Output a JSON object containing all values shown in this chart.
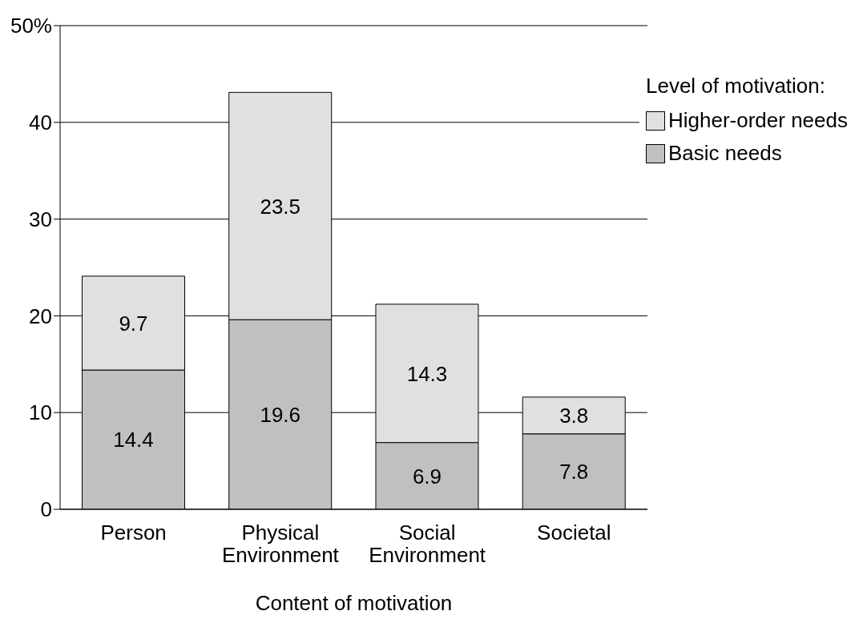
{
  "chart_data": {
    "type": "bar",
    "stacked": true,
    "xlabel": "Content of motivation",
    "legend_title": "Level of motivation:",
    "categories": [
      "Person",
      "Physical Environment",
      "Social Environment",
      "Societal"
    ],
    "series": [
      {
        "name": "Basic needs",
        "color": "#c0c0c0",
        "values": [
          14.4,
          19.6,
          6.9,
          7.8
        ]
      },
      {
        "name": "Higher-order needs",
        "color": "#e0e0e0",
        "values": [
          9.7,
          23.5,
          14.3,
          3.8
        ]
      }
    ],
    "ylim": [
      0,
      50
    ],
    "yticks": [
      0,
      10,
      20,
      30,
      40,
      {
        "value": 50,
        "label": "50%"
      }
    ],
    "grid": "y",
    "legend": "top right",
    "data_labels": true
  }
}
